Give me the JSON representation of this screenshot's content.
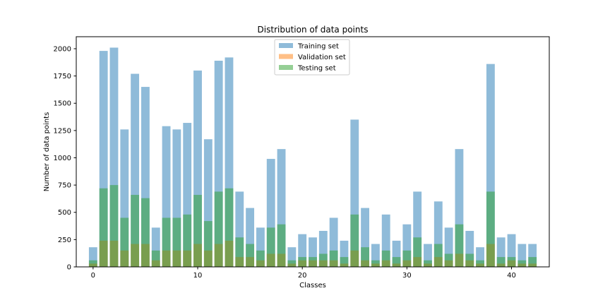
{
  "chart_data": {
    "type": "bar",
    "title": "Distribution of data points",
    "xlabel": "Classes",
    "ylabel": "Number of data points",
    "xlim": [
      -1.61,
      43.61
    ],
    "ylim": [
      0,
      2110
    ],
    "x_ticks": [
      0,
      10,
      20,
      30,
      40
    ],
    "y_ticks": [
      0,
      250,
      500,
      750,
      1000,
      1250,
      1500,
      1750,
      2000
    ],
    "categories": [
      0,
      1,
      2,
      3,
      4,
      5,
      6,
      7,
      8,
      9,
      10,
      11,
      12,
      13,
      14,
      15,
      16,
      17,
      18,
      19,
      20,
      21,
      22,
      23,
      24,
      25,
      26,
      27,
      28,
      29,
      30,
      31,
      32,
      33,
      34,
      35,
      36,
      37,
      38,
      39,
      40,
      41,
      42
    ],
    "legend_position": "top-center",
    "series": [
      {
        "name": "Training set",
        "color": "#1f77b4",
        "values": [
          180,
          1980,
          2010,
          1260,
          1770,
          1650,
          360,
          1290,
          1260,
          1320,
          1800,
          1170,
          1890,
          1920,
          690,
          540,
          360,
          990,
          1080,
          180,
          300,
          270,
          330,
          450,
          240,
          1350,
          540,
          210,
          480,
          240,
          390,
          690,
          210,
          600,
          360,
          1080,
          330,
          180,
          1860,
          270,
          300,
          210,
          210
        ]
      },
      {
        "name": "Validation set",
        "color": "#ff7f0e",
        "values": [
          30,
          240,
          240,
          150,
          210,
          210,
          60,
          150,
          150,
          150,
          210,
          150,
          210,
          240,
          90,
          90,
          60,
          120,
          120,
          30,
          60,
          60,
          60,
          60,
          30,
          150,
          60,
          30,
          60,
          30,
          60,
          90,
          30,
          90,
          60,
          120,
          60,
          30,
          210,
          30,
          60,
          30,
          30
        ]
      },
      {
        "name": "Testing set",
        "color": "#2ca02c",
        "values": [
          60,
          720,
          750,
          450,
          660,
          630,
          150,
          450,
          450,
          480,
          660,
          420,
          690,
          720,
          270,
          210,
          150,
          360,
          390,
          60,
          90,
          90,
          120,
          150,
          90,
          480,
          180,
          60,
          150,
          90,
          150,
          270,
          60,
          210,
          120,
          390,
          120,
          60,
          690,
          90,
          90,
          60,
          90
        ]
      }
    ]
  }
}
